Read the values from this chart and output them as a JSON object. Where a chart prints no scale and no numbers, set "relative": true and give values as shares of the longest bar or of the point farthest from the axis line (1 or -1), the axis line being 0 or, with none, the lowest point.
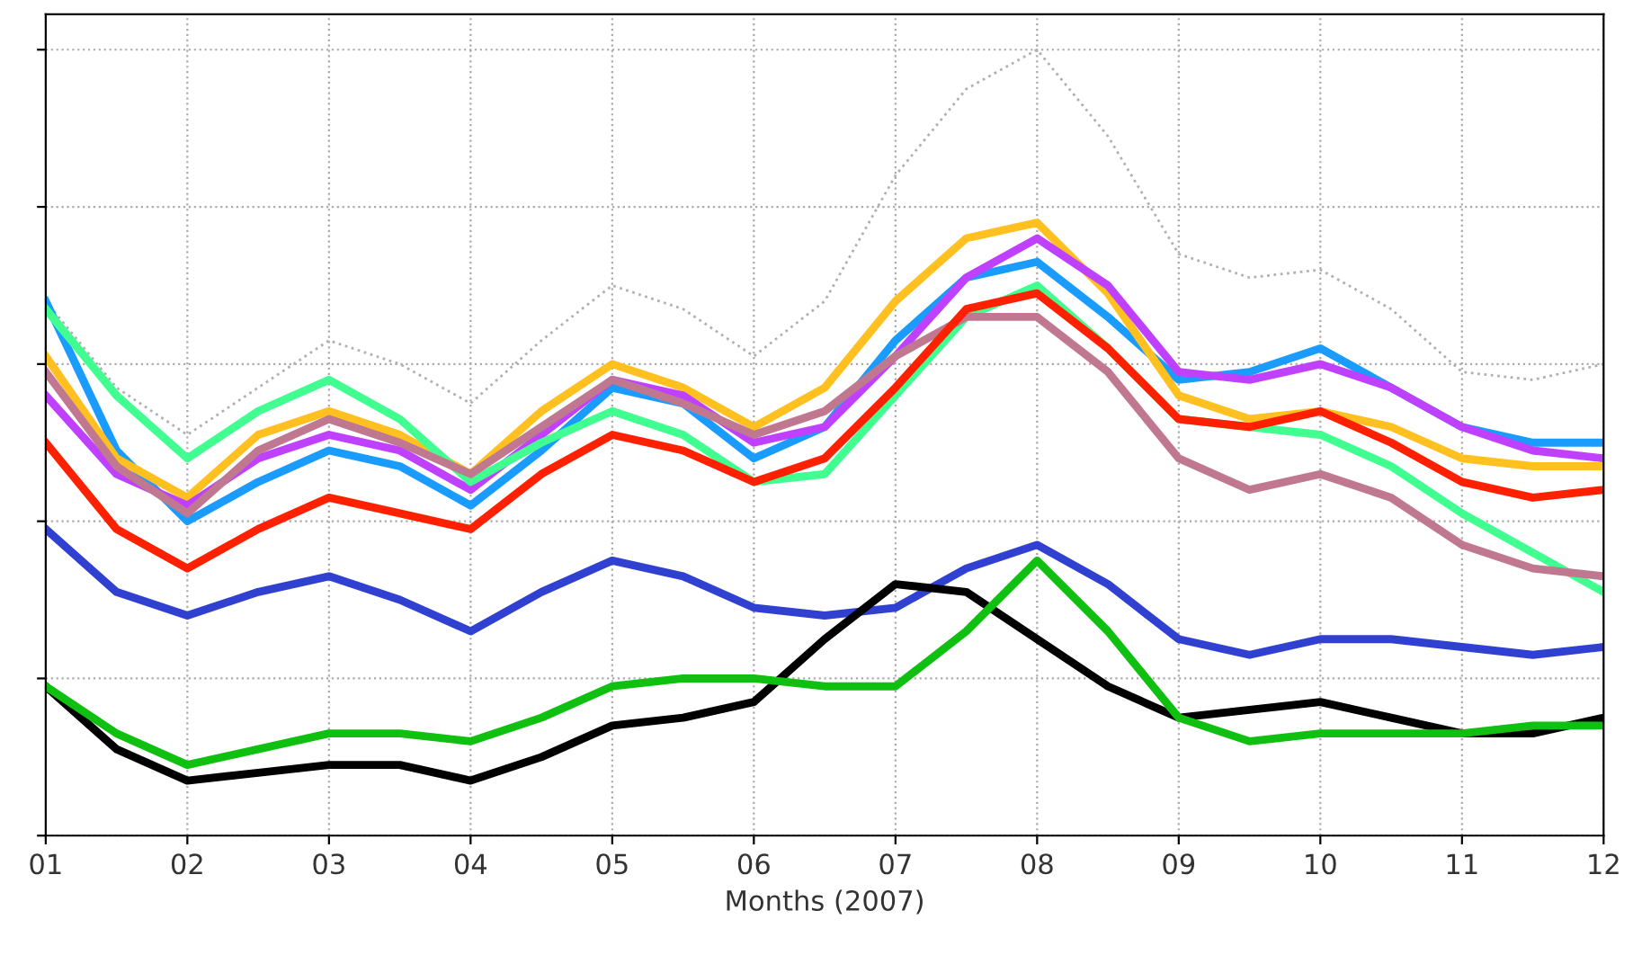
{
  "chart_data": {
    "type": "line",
    "xlabel": "Months (2007)",
    "relative": true,
    "grid": true,
    "tick_labels": "x",
    "x": [
      1,
      1.5,
      2,
      2.5,
      3,
      3.5,
      4,
      4.5,
      5,
      5.5,
      6,
      6.5,
      7,
      7.5,
      8,
      8.5,
      9,
      9.5,
      10,
      10.5,
      11,
      11.5,
      12
    ],
    "xlim": [
      1,
      12
    ],
    "xticks": [
      {
        "value": 1,
        "label": "01"
      },
      {
        "value": 2,
        "label": "02"
      },
      {
        "value": 3,
        "label": "03"
      },
      {
        "value": 4,
        "label": "04"
      },
      {
        "value": 5,
        "label": "05"
      },
      {
        "value": 6,
        "label": "06"
      },
      {
        "value": 7,
        "label": "07"
      },
      {
        "value": 8,
        "label": "08"
      },
      {
        "value": 9,
        "label": "09"
      },
      {
        "value": 10,
        "label": "10"
      },
      {
        "value": 11,
        "label": "11"
      },
      {
        "value": 12,
        "label": "12"
      }
    ],
    "series": [
      {
        "color": "#b0b0b0",
        "line_style": "dotted",
        "values": [
          0.68,
          0.57,
          0.51,
          0.57,
          0.63,
          0.6,
          0.55,
          0.63,
          0.7,
          0.67,
          0.61,
          0.68,
          0.84,
          0.95,
          1,
          0.89,
          0.74,
          0.71,
          0.72,
          0.67,
          0.59,
          0.58,
          0.6
        ]
      },
      {
        "color": "#1a9cff",
        "values": [
          0.68,
          0.49,
          0.4,
          0.45,
          0.49,
          0.47,
          0.42,
          0.49,
          0.57,
          0.55,
          0.48,
          0.52,
          0.63,
          0.71,
          0.73,
          0.66,
          0.58,
          0.59,
          0.62,
          0.57,
          0.52,
          0.5,
          0.5
        ]
      },
      {
        "color": "#ffc020",
        "values": [
          0.61,
          0.48,
          0.43,
          0.51,
          0.54,
          0.51,
          0.46,
          0.54,
          0.6,
          0.57,
          0.52,
          0.57,
          0.68,
          0.76,
          0.78,
          0.69,
          0.56,
          0.53,
          0.54,
          0.52,
          0.48,
          0.47,
          0.47
        ]
      },
      {
        "color": "#c040ff",
        "values": [
          0.56,
          0.46,
          0.42,
          0.48,
          0.51,
          0.49,
          0.44,
          0.51,
          0.58,
          0.56,
          0.5,
          0.52,
          0.61,
          0.71,
          0.76,
          0.7,
          0.59,
          0.58,
          0.6,
          0.57,
          0.52,
          0.49,
          0.48
        ]
      },
      {
        "color": "#40ff90",
        "values": [
          0.67,
          0.56,
          0.48,
          0.54,
          0.58,
          0.53,
          0.45,
          0.5,
          0.54,
          0.51,
          0.45,
          0.46,
          0.56,
          0.66,
          0.7,
          0.62,
          0.53,
          0.52,
          0.51,
          0.47,
          0.41,
          0.36,
          0.31
        ]
      },
      {
        "color": "#c07890",
        "values": [
          0.59,
          0.47,
          0.41,
          0.49,
          0.53,
          0.5,
          0.46,
          0.52,
          0.58,
          0.55,
          0.51,
          0.54,
          0.61,
          0.66,
          0.66,
          0.59,
          0.48,
          0.44,
          0.46,
          0.43,
          0.37,
          0.34,
          0.33
        ]
      },
      {
        "color": "#ff2000",
        "values": [
          0.5,
          0.39,
          0.34,
          0.39,
          0.43,
          0.41,
          0.39,
          0.46,
          0.51,
          0.49,
          0.45,
          0.48,
          0.57,
          0.67,
          0.69,
          0.62,
          0.53,
          0.52,
          0.54,
          0.5,
          0.45,
          0.43,
          0.44
        ]
      },
      {
        "color": "#3040d0",
        "values": [
          0.39,
          0.31,
          0.28,
          0.31,
          0.33,
          0.3,
          0.26,
          0.31,
          0.35,
          0.33,
          0.29,
          0.28,
          0.29,
          0.34,
          0.37,
          0.32,
          0.25,
          0.23,
          0.25,
          0.25,
          0.24,
          0.23,
          0.24
        ]
      },
      {
        "color": "#000000",
        "values": [
          0.19,
          0.11,
          0.07,
          0.08,
          0.09,
          0.09,
          0.07,
          0.1,
          0.14,
          0.15,
          0.17,
          0.25,
          0.32,
          0.31,
          0.25,
          0.19,
          0.15,
          0.16,
          0.17,
          0.15,
          0.13,
          0.13,
          0.15
        ]
      },
      {
        "color": "#10c010",
        "values": [
          0.19,
          0.13,
          0.09,
          0.11,
          0.13,
          0.13,
          0.12,
          0.15,
          0.19,
          0.2,
          0.2,
          0.19,
          0.19,
          0.26,
          0.35,
          0.26,
          0.15,
          0.12,
          0.13,
          0.13,
          0.13,
          0.14,
          0.14
        ]
      }
    ]
  }
}
